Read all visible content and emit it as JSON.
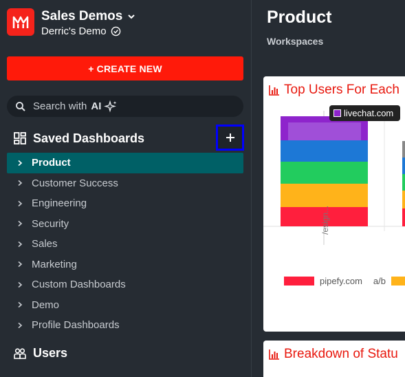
{
  "workspace": {
    "title": "Sales Demos",
    "subtitle": "Derric's Demo"
  },
  "create_button": "+ CREATE NEW",
  "search": {
    "placeholder": "Search with",
    "ai_label": "AI"
  },
  "saved_dashboards": {
    "header": "Saved Dashboards",
    "items": [
      {
        "label": "Product",
        "active": true
      },
      {
        "label": "Customer Success"
      },
      {
        "label": "Engineering"
      },
      {
        "label": "Security"
      },
      {
        "label": "Sales"
      },
      {
        "label": "Marketing"
      },
      {
        "label": "Custom Dashboards"
      },
      {
        "label": "Demo"
      },
      {
        "label": "Profile Dashboards"
      }
    ]
  },
  "users_header": "Users",
  "main": {
    "title": "Product",
    "breadcrumb": "Workspaces"
  },
  "card1": {
    "title": "Top Users For Each",
    "tooltip": "livechat.com",
    "x_tick": "/esign...",
    "legend": [
      {
        "name": "pipefy.com",
        "color": "#ff1f3d"
      },
      {
        "name": "a/b",
        "color": "#ffb31a"
      }
    ]
  },
  "card2": {
    "title": "Breakdown of Statu"
  },
  "colors": {
    "accent": "#ff1a0a",
    "active_nav": "#006066",
    "bar_purple": "#8e24cc",
    "bar_blue": "#1d78d6",
    "bar_green": "#22cc5e",
    "bar_yellow": "#ffb31a",
    "bar_red": "#ff1f3d"
  }
}
